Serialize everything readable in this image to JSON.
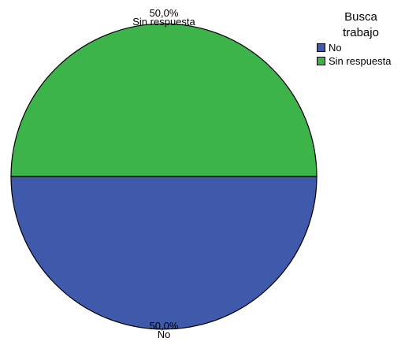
{
  "chart_data": {
    "type": "pie",
    "legend": {
      "title": "Busca\ntrabajo",
      "placement": "top-right"
    },
    "slices": [
      {
        "label": "No",
        "value": 50.0,
        "value_label": "50,0%",
        "color": "#3f5aaa"
      },
      {
        "label": "Sin respuesta",
        "value": 50.0,
        "value_label": "50,0%",
        "color": "#3cb44a"
      }
    ]
  }
}
